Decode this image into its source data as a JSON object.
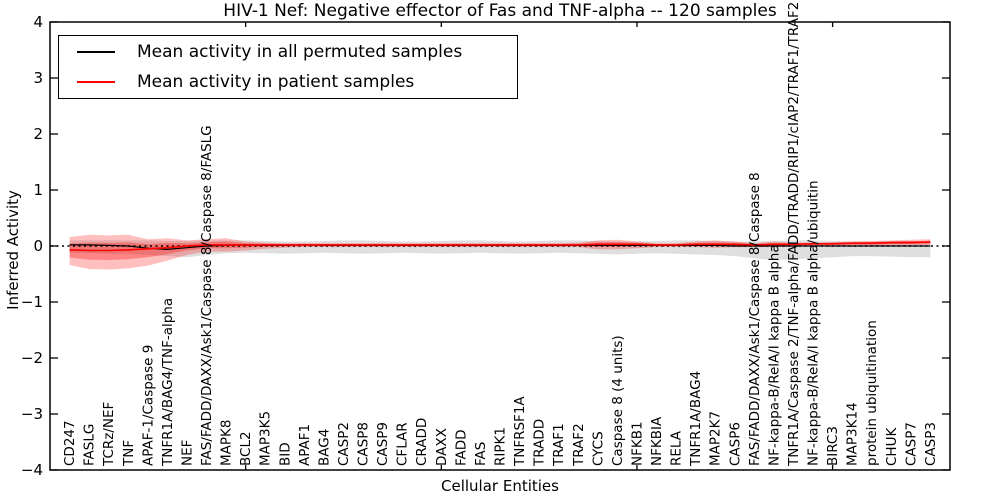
{
  "chart_data": {
    "type": "line",
    "title": "HIV-1 Nef: Negative effector of Fas and TNF-alpha -- 120 samples",
    "xlabel": "Cellular Entities",
    "ylabel": "Inferred Activity",
    "ylim": [
      -4,
      4
    ],
    "y_ticks": [
      {
        "value": 4,
        "label": "4"
      },
      {
        "value": 3,
        "label": "3"
      },
      {
        "value": 2,
        "label": "2"
      },
      {
        "value": 1,
        "label": "1"
      },
      {
        "value": 0,
        "label": "0"
      },
      {
        "value": -1,
        "label": "−1"
      },
      {
        "value": -2,
        "label": "−2"
      },
      {
        "value": -3,
        "label": "−3"
      },
      {
        "value": -4,
        "label": "−4"
      }
    ],
    "x_major_tick_positions": [
      10,
      20,
      30,
      40
    ],
    "x_index_range": [
      1,
      45
    ],
    "x_axis_divisions": 46,
    "grid": false,
    "legend_position": "upper-left",
    "zero_reference_line": 0,
    "categories": [
      "CD247",
      "FASLG",
      "TCRz/NEF",
      "TNF",
      "APAF-1/Caspase 9",
      "TNFR1A/BAG4/TNF-alpha",
      "NEF",
      "FAS/FADD/DAXX/Ask1/Caspase 8/Caspase 8/FASLG",
      "MAPK8",
      "BCL2",
      "MAP3K5",
      "BID",
      "APAF1",
      "BAG4",
      "CASP2",
      "CASP8",
      "CASP9",
      "CFLAR",
      "CRADD",
      "DAXX",
      "FADD",
      "FAS",
      "RIPK1",
      "TNFRSF1A",
      "TRADD",
      "TRAF1",
      "TRAF2",
      "CYCS",
      "Caspase 8 (4 units)",
      "NFKB1",
      "NFKBIA",
      "RELA",
      "TNFR1A/BAG4",
      "MAP2K7",
      "CASP6",
      "FAS/FADD/DAXX/Ask1/Caspase 8/Caspase 8",
      "NF-kappa-B/RelA/I kappa B alpha",
      "TNFR1A/Caspase 2/TNF-alpha/FADD/TRADD/RIP1/cIAP2/TRAF1/TRAF2",
      "NF-kappa-B/RelA/I kappa B alpha/ubiquitin",
      "BIRC3",
      "MAP3K14",
      "protein ubiquitination",
      "CHUK",
      "CASP7",
      "CASP3"
    ],
    "series": [
      {
        "name": "Mean activity in all permuted samples",
        "color": "#000000",
        "values": [
          0.02,
          0.02,
          0.01,
          0.0,
          -0.04,
          -0.06,
          -0.03,
          0.0,
          0.01,
          0.02,
          0.01,
          0.01,
          0.02,
          0.01,
          0.01,
          0.01,
          0.01,
          0.01,
          0.01,
          0.01,
          0.01,
          0.01,
          0.01,
          0.01,
          0.01,
          0.01,
          0.01,
          0.01,
          0.01,
          0.01,
          0.01,
          0.01,
          0.01,
          0.01,
          0.0,
          0.0,
          0.0,
          0.0,
          0.0,
          0.0,
          0.0,
          0.0,
          0.0,
          0.0,
          0.0
        ]
      },
      {
        "name": "Mean activity in patient samples",
        "color": "#ff0000",
        "values": [
          -0.07,
          -0.08,
          -0.08,
          -0.07,
          -0.05,
          -0.03,
          0.0,
          0.02,
          0.02,
          0.02,
          0.02,
          0.02,
          0.02,
          0.02,
          0.02,
          0.02,
          0.02,
          0.02,
          0.02,
          0.02,
          0.02,
          0.02,
          0.02,
          0.02,
          0.02,
          0.02,
          0.02,
          0.03,
          0.03,
          0.03,
          0.02,
          0.02,
          0.03,
          0.03,
          0.03,
          0.02,
          0.03,
          0.03,
          0.04,
          0.04,
          0.05,
          0.05,
          0.06,
          0.06,
          0.07
        ]
      }
    ],
    "bands": [
      {
        "name": "permuted-samples-interval",
        "color": "rgba(128,128,128,0.25)",
        "upper": [
          0.1,
          0.1,
          0.1,
          0.1,
          0.1,
          0.09,
          0.09,
          0.1,
          0.1,
          0.1,
          0.09,
          0.08,
          0.08,
          0.09,
          0.1,
          0.1,
          0.09,
          0.08,
          0.08,
          0.09,
          0.1,
          0.1,
          0.09,
          0.08,
          0.09,
          0.1,
          0.1,
          0.09,
          0.08,
          0.08,
          0.09,
          0.1,
          0.1,
          0.09,
          0.08,
          0.08,
          0.09,
          0.1,
          0.1,
          0.09,
          0.08,
          0.08,
          0.09,
          0.09,
          0.08
        ],
        "lower": [
          -0.12,
          -0.13,
          -0.14,
          -0.14,
          -0.16,
          -0.18,
          -0.2,
          -0.16,
          -0.13,
          -0.12,
          -0.13,
          -0.14,
          -0.13,
          -0.12,
          -0.13,
          -0.14,
          -0.13,
          -0.12,
          -0.13,
          -0.14,
          -0.13,
          -0.12,
          -0.13,
          -0.14,
          -0.13,
          -0.12,
          -0.13,
          -0.14,
          -0.15,
          -0.14,
          -0.13,
          -0.14,
          -0.15,
          -0.16,
          -0.18,
          -0.22,
          -0.25,
          -0.24,
          -0.22,
          -0.2,
          -0.18,
          -0.18,
          -0.19,
          -0.2,
          -0.2
        ]
      },
      {
        "name": "patient-samples-interval",
        "color": "rgba(255,0,0,0.25)",
        "upper": [
          0.16,
          0.2,
          0.19,
          0.2,
          0.12,
          0.14,
          0.1,
          0.12,
          0.14,
          0.08,
          0.06,
          0.05,
          0.05,
          0.05,
          0.05,
          0.05,
          0.05,
          0.05,
          0.05,
          0.05,
          0.05,
          0.05,
          0.05,
          0.05,
          0.05,
          0.05,
          0.06,
          0.1,
          0.11,
          0.08,
          0.05,
          0.05,
          0.08,
          0.1,
          0.08,
          0.05,
          0.08,
          0.06,
          0.06,
          0.07,
          0.08,
          0.09,
          0.1,
          0.11,
          0.12
        ],
        "lower": [
          -0.34,
          -0.41,
          -0.42,
          -0.4,
          -0.35,
          -0.26,
          -0.16,
          -0.1,
          -0.1,
          -0.08,
          -0.05,
          -0.03,
          -0.02,
          -0.02,
          -0.02,
          -0.02,
          -0.02,
          -0.02,
          -0.02,
          -0.02,
          -0.02,
          -0.02,
          -0.02,
          -0.02,
          -0.02,
          -0.02,
          -0.02,
          -0.06,
          -0.06,
          -0.04,
          -0.02,
          -0.02,
          -0.02,
          -0.03,
          -0.02,
          -0.02,
          -0.02,
          -0.01,
          0.0,
          0.0,
          0.0,
          0.0,
          0.01,
          0.01,
          0.02
        ]
      }
    ],
    "colors": {
      "axis": "#000000",
      "zero_line": "#000000",
      "permuted_mean_line": "#000000",
      "patient_mean_line": "#ff0000",
      "patient_band_inner": "rgba(255,0,0,0.30)",
      "background": "#ffffff"
    }
  }
}
